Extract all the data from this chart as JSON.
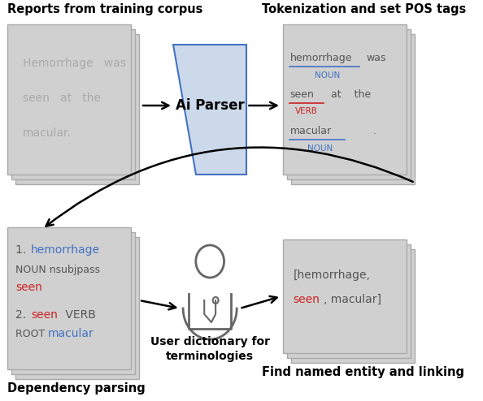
{
  "bg_color": "#ffffff",
  "card_color": "#d0d0d0",
  "card_edge_color": "#aaaaaa",
  "parser_fill": "#ccd9ea",
  "parser_edge": "#4472c4",
  "text_gray": "#aaaaaa",
  "text_dark": "#555555",
  "text_blue": "#4472c4",
  "text_red": "#cc2222",
  "top_left_title": "Reports from training corpus",
  "top_right_title": "Tokenization and set POS tags",
  "bottom_left_title": "Dependency parsing",
  "bottom_right_title": "Find named entity and linking"
}
